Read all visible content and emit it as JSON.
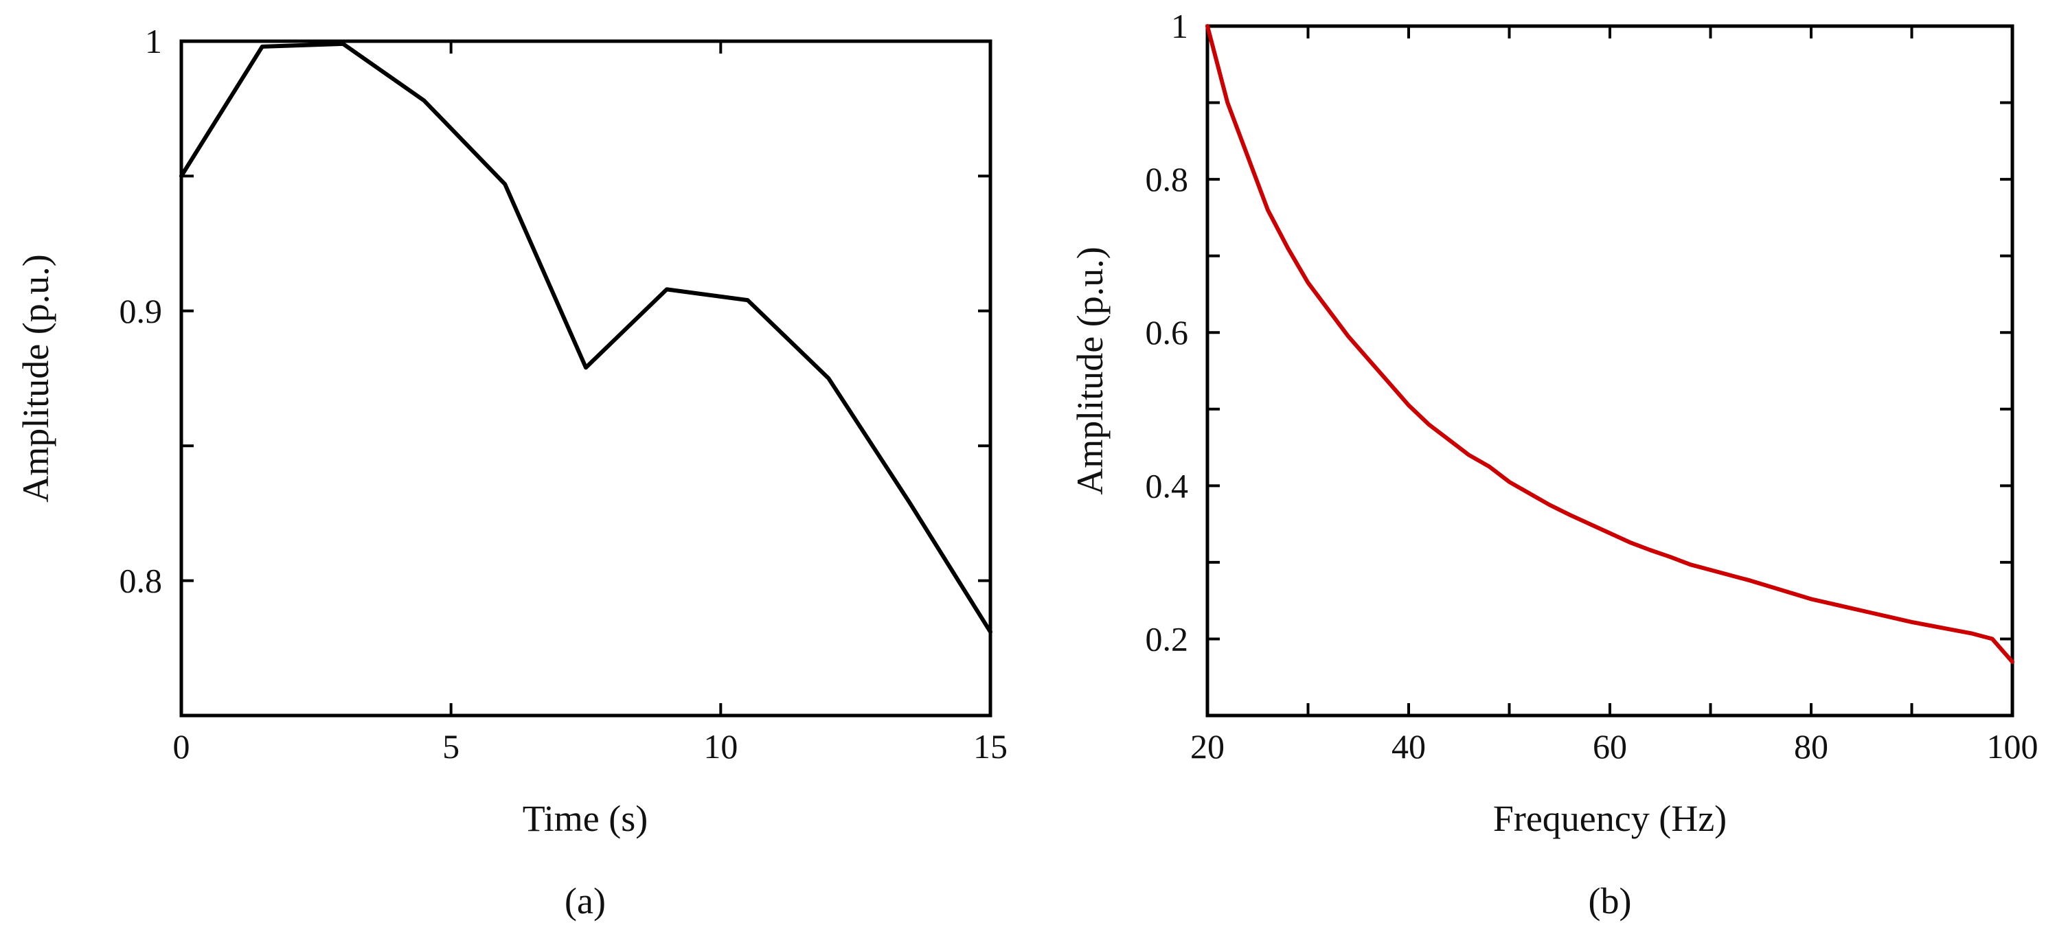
{
  "chart_data": [
    {
      "type": "line",
      "panel_label": "(a)",
      "xlabel": "Time (s)",
      "ylabel": "Amplitude (p.u.)",
      "xlim": [
        0,
        15
      ],
      "ylim": [
        0.75,
        1.0
      ],
      "xticks": [
        0,
        5,
        10,
        15
      ],
      "xtick_labels": [
        "0",
        "5",
        "10",
        "15"
      ],
      "yticks": [
        0.8,
        0.85,
        0.9,
        0.95,
        1.0
      ],
      "ytick_labels": [
        "0.8",
        "",
        "0.9",
        "",
        "1"
      ],
      "grid": false,
      "line_color": "#000000",
      "series": [
        {
          "x": [
            0,
            1.5,
            3,
            4.5,
            6,
            7.5,
            9,
            10.5,
            12,
            13.5,
            15
          ],
          "y": [
            0.95,
            0.998,
            0.999,
            0.978,
            0.947,
            0.879,
            0.908,
            0.904,
            0.875,
            0.829,
            0.781
          ]
        }
      ]
    },
    {
      "type": "line",
      "panel_label": "(b)",
      "xlabel": "Frequency (Hz)",
      "ylabel": "Amplitude (p.u.)",
      "xlim": [
        20,
        100
      ],
      "ylim": [
        0.1,
        1.0
      ],
      "xticks": [
        20,
        30,
        40,
        50,
        60,
        70,
        80,
        90,
        100
      ],
      "xtick_labels": [
        "20",
        "",
        "40",
        "",
        "60",
        "",
        "80",
        "",
        "100"
      ],
      "yticks": [
        0.1,
        0.2,
        0.3,
        0.4,
        0.5,
        0.6,
        0.7,
        0.8,
        0.9,
        1.0
      ],
      "ytick_labels": [
        "",
        "0.2",
        "",
        "0.4",
        "",
        "0.6",
        "",
        "0.8",
        "",
        "1"
      ],
      "grid": false,
      "line_color": "#cc0000",
      "series": [
        {
          "x": [
            20,
            22,
            24,
            26,
            28,
            30,
            32,
            34,
            36,
            38,
            40,
            42,
            44,
            46,
            48,
            50,
            52,
            54,
            56,
            58,
            60,
            62,
            64,
            66,
            68,
            70,
            72,
            74,
            76,
            78,
            80,
            82,
            84,
            86,
            88,
            90,
            92,
            94,
            96,
            98,
            100
          ],
          "y": [
            1.0,
            0.9,
            0.83,
            0.76,
            0.71,
            0.665,
            0.63,
            0.595,
            0.565,
            0.535,
            0.505,
            0.48,
            0.46,
            0.44,
            0.425,
            0.405,
            0.39,
            0.375,
            0.362,
            0.35,
            0.338,
            0.326,
            0.316,
            0.307,
            0.297,
            0.29,
            0.283,
            0.276,
            0.268,
            0.26,
            0.252,
            0.246,
            0.24,
            0.234,
            0.228,
            0.222,
            0.217,
            0.212,
            0.207,
            0.2,
            0.17
          ]
        }
      ]
    }
  ]
}
